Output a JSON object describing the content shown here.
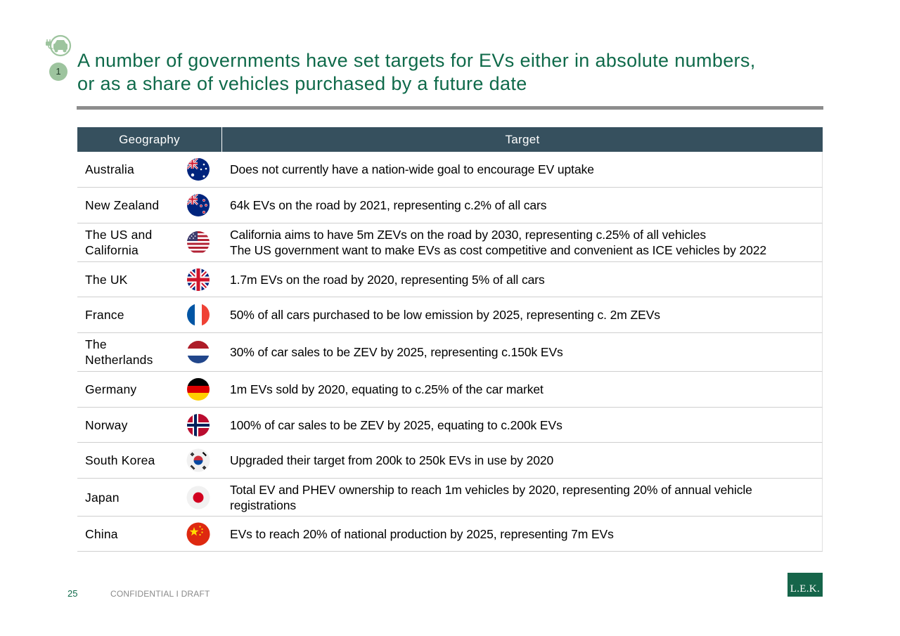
{
  "header": {
    "step_number": "1",
    "title_line1": "A number of governments have set targets for EVs either in absolute numbers,",
    "title_line2": "or as a share of vehicles purchased by a future date",
    "icon": "electric-car-icon"
  },
  "table": {
    "col_geography": "Geography",
    "col_target": "Target",
    "rows": [
      {
        "geo": [
          "Australia"
        ],
        "flag": "australia-flag-icon",
        "targets": [
          "Does not currently have a nation-wide goal to encourage EV uptake"
        ]
      },
      {
        "geo": [
          "New Zealand"
        ],
        "flag": "new-zealand-flag-icon",
        "targets": [
          "64k EVs on the road by 2021, representing c.2% of all cars"
        ]
      },
      {
        "geo": [
          "The US and",
          "California"
        ],
        "flag": "usa-flag-icon",
        "targets": [
          "California aims to have 5m ZEVs on the road by 2030, representing c.25% of all vehicles",
          "The US government want to make EVs as cost competitive and convenient as ICE vehicles by 2022"
        ]
      },
      {
        "geo": [
          "The UK"
        ],
        "flag": "uk-flag-icon",
        "targets": [
          "1.7m EVs on the road by 2020, representing 5% of all cars"
        ]
      },
      {
        "geo": [
          "France"
        ],
        "flag": "france-flag-icon",
        "targets": [
          "50% of all cars purchased to be low emission by 2025, representing c. 2m ZEVs"
        ]
      },
      {
        "geo": [
          "The",
          "Netherlands"
        ],
        "flag": "netherlands-flag-icon",
        "targets": [
          "30% of car sales to be ZEV by 2025, representing c.150k EVs"
        ]
      },
      {
        "geo": [
          "Germany"
        ],
        "flag": "germany-flag-icon",
        "targets": [
          "1m EVs sold by 2020, equating to c.25% of the car market"
        ]
      },
      {
        "geo": [
          "Norway"
        ],
        "flag": "norway-flag-icon",
        "targets": [
          "100% of car sales to be ZEV by 2025, equating to c.200k EVs"
        ]
      },
      {
        "geo": [
          "South Korea"
        ],
        "flag": "south-korea-flag-icon",
        "targets": [
          "Upgraded their target from 200k to 250k EVs in use by 2020"
        ]
      },
      {
        "geo": [
          "Japan"
        ],
        "flag": "japan-flag-icon",
        "targets": [
          "Total EV and PHEV ownership to reach 1m vehicles by 2020, representing 20% of annual vehicle registrations"
        ]
      },
      {
        "geo": [
          "China"
        ],
        "flag": "china-flag-icon",
        "targets": [
          "EVs to reach 20% of national production by 2025, representing 7m EVs"
        ]
      }
    ]
  },
  "footer": {
    "page_number": "25",
    "confidential": "CONFIDENTIAL  I  DRAFT",
    "logo_text": "L.E.K."
  },
  "colors": {
    "title_green": "#0f6a4a",
    "header_bar": "#36505e",
    "logo_green": "#16654a",
    "badge_green": "#9dc49e"
  }
}
